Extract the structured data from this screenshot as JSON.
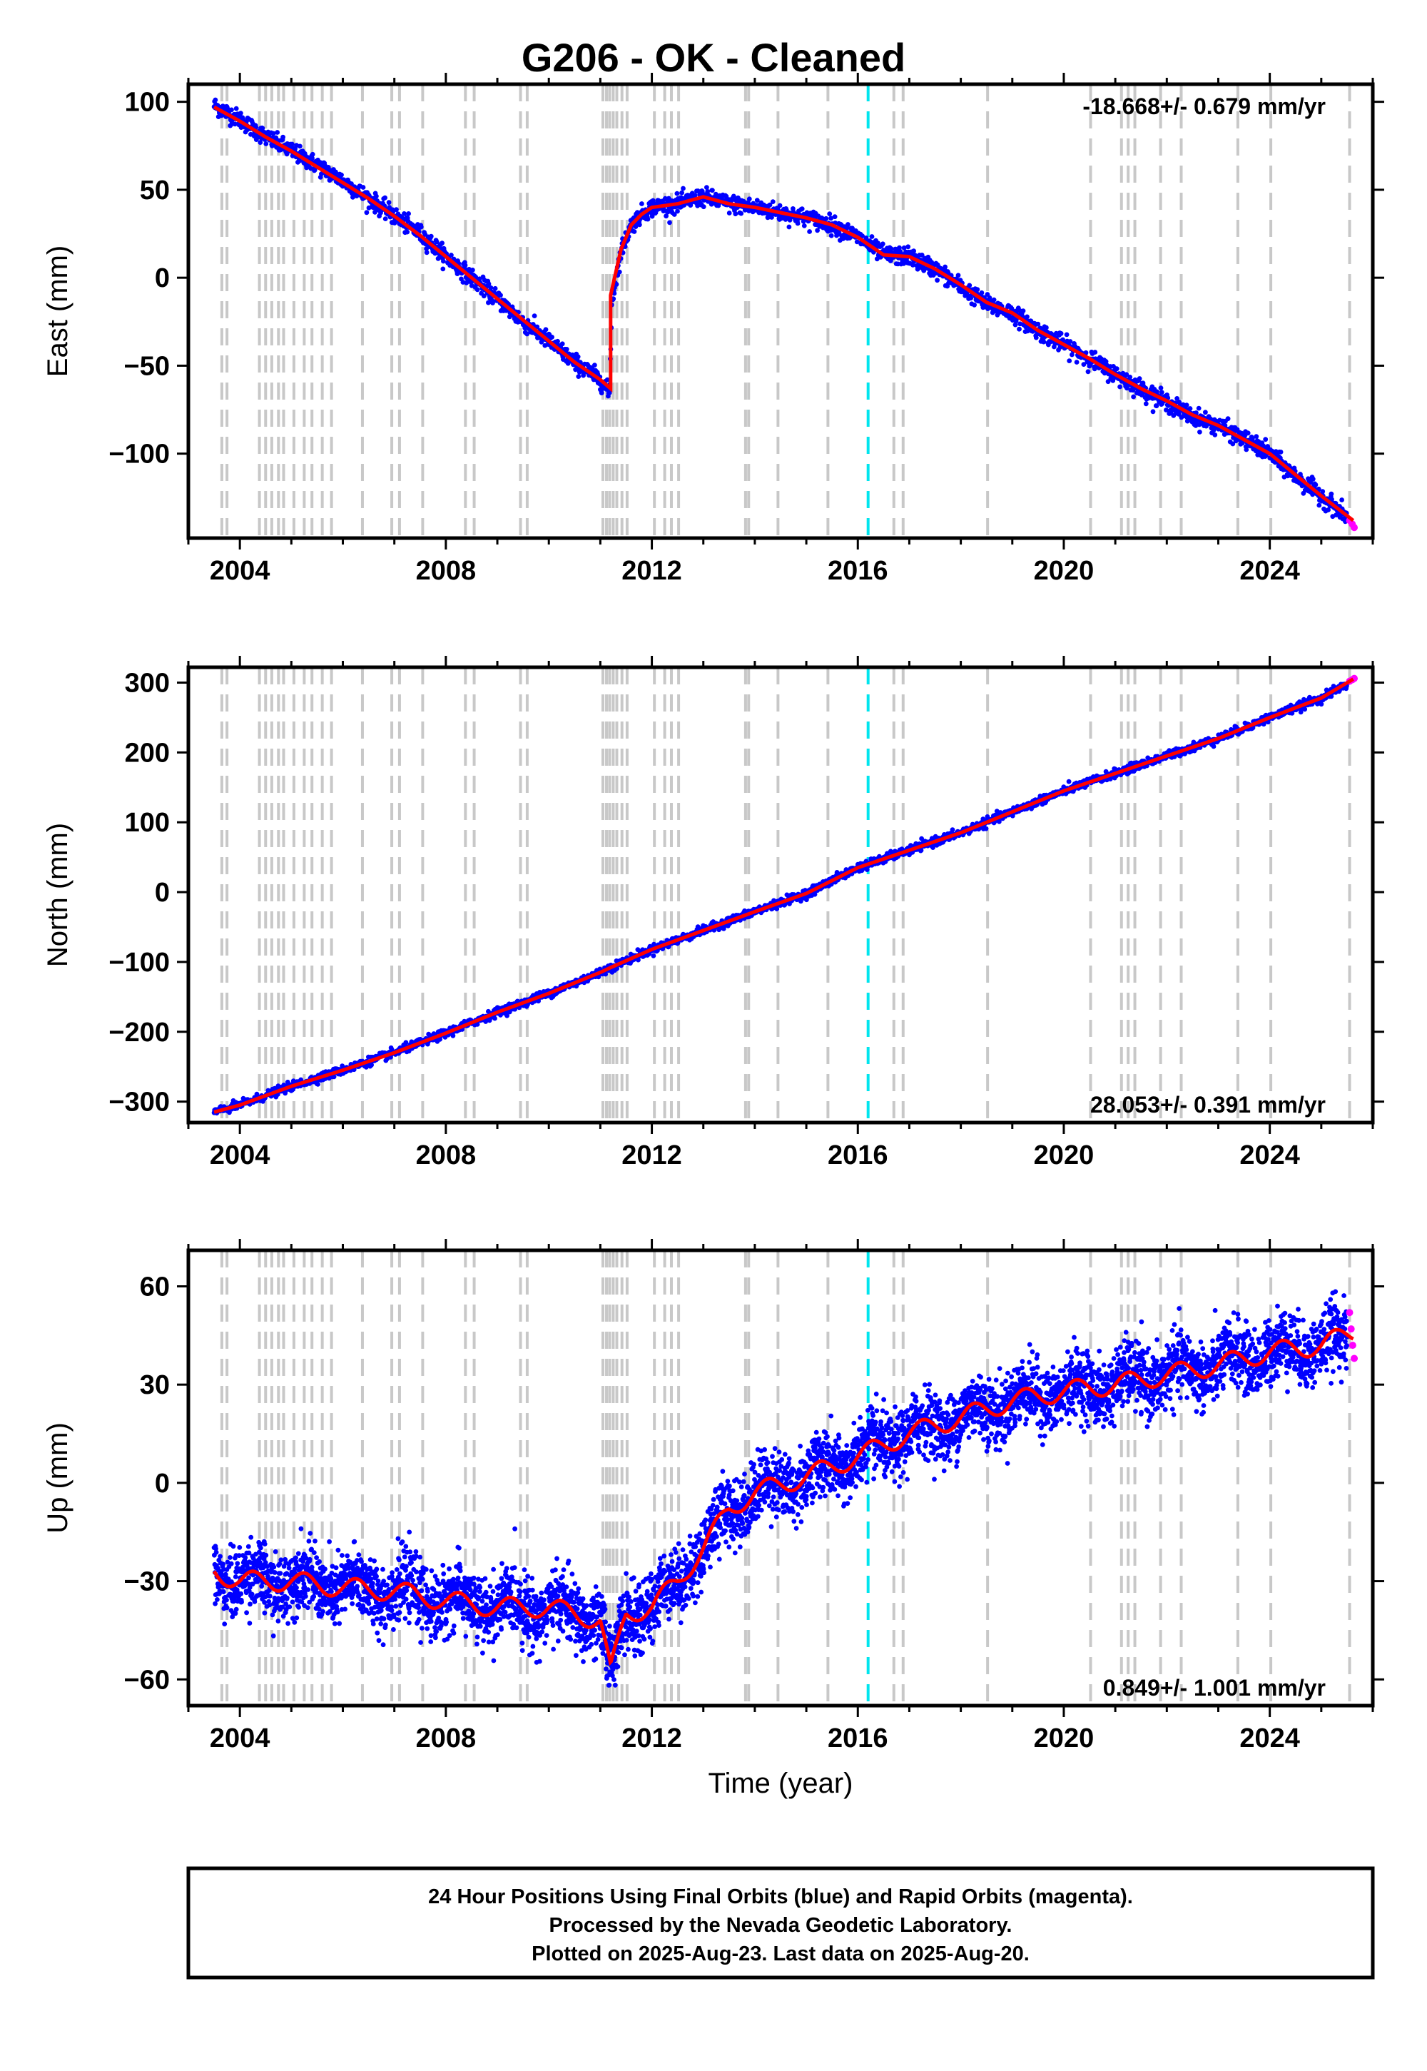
{
  "title": "G206  - OK - Cleaned",
  "chart_data": [
    {
      "id": "east",
      "type": "scatter",
      "ylabel": "East (mm)",
      "xlabel": "",
      "rate_text": "-18.668+/- 0.679 mm/yr",
      "rate_position": "top-right",
      "xlim": [
        2003.0,
        2026.0
      ],
      "ylim": [
        -148,
        110
      ],
      "yticks": [
        100,
        50,
        0,
        -50,
        -100
      ],
      "ytick_labels": [
        "100",
        "50",
        "0",
        "−50",
        "−100"
      ],
      "xticks": [
        2004,
        2008,
        2012,
        2016,
        2020,
        2024
      ],
      "xtick_labels": [
        "2004",
        "2008",
        "2012",
        "2016",
        "2020",
        "2024"
      ],
      "grid": false,
      "series": [
        {
          "role": "final-orbits",
          "color": "#0000ff",
          "x": [
            2003.5,
            2004.0,
            2004.5,
            2005.0,
            2005.5,
            2006.0,
            2006.5,
            2007.0,
            2007.5,
            2008.0,
            2008.5,
            2009.0,
            2009.5,
            2010.0,
            2010.5,
            2011.0,
            2011.18,
            2011.22,
            2011.4,
            2011.6,
            2011.8,
            2012.0,
            2012.5,
            2013.0,
            2013.5,
            2014.0,
            2014.5,
            2015.0,
            2015.5,
            2016.0,
            2016.5,
            2017.0,
            2017.5,
            2018.0,
            2018.5,
            2019.0,
            2019.5,
            2020.0,
            2020.5,
            2021.0,
            2021.5,
            2022.0,
            2022.5,
            2023.0,
            2023.5,
            2024.0,
            2024.5,
            2025.0,
            2025.5
          ],
          "y": [
            98,
            90,
            80,
            72,
            64,
            55,
            45,
            35,
            25,
            12,
            0,
            -12,
            -25,
            -36,
            -48,
            -58,
            -66,
            -15,
            15,
            30,
            36,
            40,
            42,
            46,
            42,
            40,
            37,
            34,
            30,
            23,
            13,
            12,
            5,
            -5,
            -15,
            -20,
            -30,
            -38,
            -46,
            -55,
            -63,
            -71,
            -79,
            -84,
            -92,
            -100,
            -113,
            -124,
            -136
          ]
        },
        {
          "role": "rapid-orbits",
          "color": "#ff00ff",
          "x": [
            2025.55,
            2025.6,
            2025.64
          ],
          "y": [
            -138,
            -140,
            -142
          ]
        },
        {
          "role": "model-fit",
          "color": "#ff0000",
          "x": [
            2003.5,
            2004.0,
            2004.5,
            2005.0,
            2005.5,
            2006.0,
            2006.5,
            2007.0,
            2007.5,
            2008.0,
            2008.5,
            2009.0,
            2009.5,
            2010.0,
            2010.5,
            2011.0,
            2011.2,
            2011.2,
            2011.4,
            2011.6,
            2011.8,
            2012.0,
            2012.5,
            2013.0,
            2013.5,
            2014.0,
            2014.5,
            2015.0,
            2015.5,
            2016.0,
            2016.5,
            2017.0,
            2017.5,
            2018.0,
            2018.5,
            2019.0,
            2019.5,
            2020.0,
            2020.5,
            2021.0,
            2021.5,
            2022.0,
            2022.5,
            2023.0,
            2023.5,
            2024.0,
            2024.5,
            2025.0,
            2025.62
          ],
          "y": [
            97,
            89,
            80,
            72,
            63,
            54,
            45,
            35,
            24,
            12,
            0,
            -12,
            -24,
            -36,
            -48,
            -58,
            -63,
            -10,
            16,
            30,
            36,
            40,
            42,
            46,
            42,
            40,
            37,
            34,
            30,
            23,
            13,
            12,
            5,
            -4,
            -14,
            -20,
            -30,
            -38,
            -46,
            -55,
            -63,
            -70,
            -78,
            -84,
            -92,
            -100,
            -112,
            -124,
            -138
          ]
        }
      ],
      "noise_mm": 2.5
    },
    {
      "id": "north",
      "type": "scatter",
      "ylabel": "North (mm)",
      "xlabel": "",
      "rate_text": "28.053+/- 0.391 mm/yr",
      "rate_position": "bottom-right",
      "xlim": [
        2003.0,
        2026.0
      ],
      "ylim": [
        -330,
        322
      ],
      "yticks": [
        300,
        200,
        100,
        0,
        -100,
        -200,
        -300
      ],
      "ytick_labels": [
        "300",
        "200",
        "100",
        "0",
        "−100",
        "−200",
        "−300"
      ],
      "xticks": [
        2004,
        2008,
        2012,
        2016,
        2020,
        2024
      ],
      "xtick_labels": [
        "2004",
        "2008",
        "2012",
        "2016",
        "2020",
        "2024"
      ],
      "grid": false,
      "series": [
        {
          "role": "final-orbits",
          "color": "#0000ff",
          "x": [
            2003.5,
            2004.0,
            2005.0,
            2006.0,
            2007.0,
            2008.0,
            2009.0,
            2010.0,
            2011.0,
            2011.2,
            2012.0,
            2013.0,
            2014.0,
            2015.0,
            2016.0,
            2017.0,
            2018.0,
            2019.0,
            2020.0,
            2021.0,
            2022.0,
            2023.0,
            2024.0,
            2025.0,
            2025.5
          ],
          "y": [
            -315,
            -305,
            -278,
            -255,
            -230,
            -202,
            -172,
            -145,
            -115,
            -108,
            -82,
            -55,
            -28,
            -2,
            35,
            60,
            85,
            115,
            145,
            170,
            195,
            220,
            250,
            278,
            298
          ]
        },
        {
          "role": "rapid-orbits",
          "color": "#ff00ff",
          "x": [
            2025.55,
            2025.6,
            2025.64
          ],
          "y": [
            302,
            304,
            306
          ]
        },
        {
          "role": "model-fit",
          "color": "#ff0000",
          "x": [
            2003.5,
            2004.0,
            2005.0,
            2006.0,
            2007.0,
            2008.0,
            2009.0,
            2010.0,
            2011.0,
            2011.2,
            2012.0,
            2013.0,
            2014.0,
            2015.0,
            2016.0,
            2017.0,
            2018.0,
            2019.0,
            2020.0,
            2021.0,
            2022.0,
            2023.0,
            2024.0,
            2025.0,
            2025.62
          ],
          "y": [
            -315,
            -305,
            -278,
            -255,
            -230,
            -202,
            -172,
            -145,
            -115,
            -108,
            -82,
            -55,
            -28,
            -2,
            35,
            60,
            85,
            115,
            145,
            170,
            195,
            220,
            250,
            278,
            305
          ]
        }
      ],
      "noise_mm": 3
    },
    {
      "id": "up",
      "type": "scatter",
      "ylabel": "Up (mm)",
      "xlabel": "Time (year)",
      "rate_text": "0.849+/- 1.001 mm/yr",
      "rate_position": "bottom-right",
      "xlim": [
        2003.0,
        2026.0
      ],
      "ylim": [
        -68,
        71
      ],
      "yticks": [
        60,
        30,
        0,
        -30,
        -60
      ],
      "ytick_labels": [
        "60",
        "30",
        "0",
        "−30",
        "−60"
      ],
      "xticks": [
        2004,
        2008,
        2012,
        2016,
        2020,
        2024
      ],
      "xtick_labels": [
        "2004",
        "2008",
        "2012",
        "2016",
        "2020",
        "2024"
      ],
      "grid": false,
      "series": [
        {
          "role": "final-orbits",
          "color": "#0000ff",
          "x": [
            2003.5,
            2004.0,
            2005.0,
            2006.0,
            2007.0,
            2008.0,
            2009.0,
            2010.0,
            2011.0,
            2011.2,
            2011.5,
            2012.0,
            2012.5,
            2013.0,
            2013.5,
            2014.0,
            2015.0,
            2016.0,
            2017.0,
            2018.0,
            2019.0,
            2020.0,
            2021.0,
            2022.0,
            2023.0,
            2024.0,
            2025.0,
            2025.5
          ],
          "y": [
            -27,
            -30,
            -30,
            -32,
            -33,
            -36,
            -38,
            -38,
            -42,
            -58,
            -40,
            -38,
            -30,
            -20,
            -8,
            -3,
            2,
            8,
            15,
            20,
            25,
            28,
            30,
            33,
            36,
            40,
            42,
            44
          ]
        },
        {
          "role": "rapid-orbits",
          "color": "#ff00ff",
          "x": [
            2025.55,
            2025.58,
            2025.61,
            2025.64
          ],
          "y": [
            52,
            47,
            42,
            38
          ]
        },
        {
          "role": "model-fit",
          "color": "#ff0000",
          "x": [
            2003.5,
            2004.0,
            2005.0,
            2006.0,
            2007.0,
            2008.0,
            2009.0,
            2010.0,
            2011.0,
            2011.2,
            2011.5,
            2012.0,
            2012.5,
            2013.0,
            2013.5,
            2014.0,
            2015.0,
            2016.0,
            2017.0,
            2018.0,
            2019.0,
            2020.0,
            2021.0,
            2022.0,
            2023.0,
            2024.0,
            2025.0,
            2025.62
          ],
          "y": [
            -27,
            -30,
            -30,
            -32,
            -33,
            -36,
            -38,
            -38,
            -42,
            -58,
            -40,
            -38,
            -30,
            -20,
            -8,
            -3,
            2,
            8,
            15,
            20,
            25,
            28,
            30,
            33,
            36,
            40,
            42,
            46
          ]
        }
      ],
      "noise_mm": 5,
      "seasonal_amp_mm": 3
    }
  ],
  "event_lines": {
    "gray_years": [
      2003.65,
      2003.75,
      2004.38,
      2004.5,
      2004.62,
      2004.75,
      2004.85,
      2005.05,
      2005.25,
      2005.4,
      2005.6,
      2005.78,
      2006.38,
      2006.95,
      2007.1,
      2007.55,
      2008.38,
      2008.55,
      2009.45,
      2009.58,
      2011.05,
      2011.12,
      2011.18,
      2011.25,
      2011.32,
      2011.42,
      2011.52,
      2012.05,
      2012.25,
      2012.38,
      2012.52,
      2013.82,
      2013.88,
      2014.45,
      2015.42,
      2016.7,
      2016.88,
      2018.52,
      2020.52,
      2021.12,
      2021.25,
      2021.38,
      2021.88,
      2022.28,
      2023.38,
      2024.02,
      2025.55
    ],
    "gray_color": "#c8c8c8",
    "cyan_year": 2016.2,
    "cyan_color": "#00e5ee"
  },
  "footer": {
    "line1": "24 Hour Positions Using Final Orbits (blue) and Rapid Orbits (magenta).",
    "line2": "Processed by the Nevada Geodetic Laboratory.",
    "line3": "Plotted on 2025-Aug-23. Last data on 2025-Aug-20."
  }
}
